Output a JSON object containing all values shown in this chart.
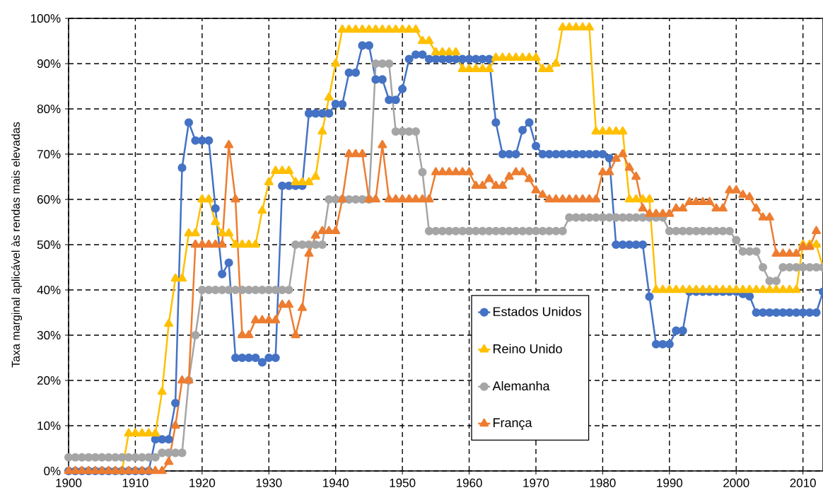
{
  "chart_data": {
    "type": "line",
    "ylabel": "Taxa marginal aplicável às rendas mais elevadas",
    "x": [
      1900,
      1901,
      1902,
      1903,
      1904,
      1905,
      1906,
      1907,
      1908,
      1909,
      1910,
      1911,
      1912,
      1913,
      1914,
      1915,
      1916,
      1917,
      1918,
      1919,
      1920,
      1921,
      1922,
      1923,
      1924,
      1925,
      1926,
      1927,
      1928,
      1929,
      1930,
      1931,
      1932,
      1933,
      1934,
      1935,
      1936,
      1937,
      1938,
      1939,
      1940,
      1941,
      1942,
      1943,
      1944,
      1945,
      1946,
      1947,
      1948,
      1949,
      1950,
      1951,
      1952,
      1953,
      1954,
      1955,
      1956,
      1957,
      1958,
      1959,
      1960,
      1961,
      1962,
      1963,
      1964,
      1965,
      1966,
      1967,
      1968,
      1969,
      1970,
      1971,
      1972,
      1973,
      1974,
      1975,
      1976,
      1977,
      1978,
      1979,
      1980,
      1981,
      1982,
      1983,
      1984,
      1985,
      1986,
      1987,
      1988,
      1989,
      1990,
      1991,
      1992,
      1993,
      1994,
      1995,
      1996,
      1997,
      1998,
      1999,
      2000,
      2001,
      2002,
      2003,
      2004,
      2005,
      2006,
      2007,
      2008,
      2009,
      2010,
      2011,
      2012,
      2013
    ],
    "series": [
      {
        "name": "Estados Unidos",
        "color": "#4472c4",
        "marker": "circle",
        "values": [
          0,
          0,
          0,
          0,
          0,
          0,
          0,
          0,
          0,
          0,
          0,
          0,
          0,
          7,
          7,
          7,
          15,
          67,
          77,
          73,
          73,
          73,
          58,
          43.5,
          46,
          25,
          25,
          25,
          25,
          24,
          25,
          25,
          63,
          63,
          63,
          63,
          79,
          79,
          79,
          79,
          81.1,
          81,
          88,
          88,
          94,
          94,
          86.5,
          86.5,
          82,
          82,
          84.4,
          91,
          92,
          92,
          91,
          91,
          91,
          91,
          91,
          91,
          91,
          91,
          91,
          91,
          77,
          70,
          70,
          70,
          75.3,
          77,
          71.8,
          70,
          70,
          70,
          70,
          70,
          70,
          70,
          70,
          70,
          70,
          69.1,
          50,
          50,
          50,
          50,
          50,
          38.5,
          28,
          28,
          28,
          31,
          31,
          39.6,
          39.6,
          39.6,
          39.6,
          39.6,
          39.6,
          39.6,
          39.6,
          39.1,
          38.6,
          35,
          35,
          35,
          35,
          35,
          35,
          35,
          35,
          35,
          35,
          39.6
        ]
      },
      {
        "name": "Reino Unido",
        "color": "#ffc000",
        "marker": "triangle",
        "values": [
          null,
          null,
          null,
          null,
          null,
          null,
          null,
          0,
          0,
          8.3,
          8.3,
          8.3,
          8.3,
          8.3,
          17.5,
          32.5,
          42.5,
          42.5,
          52.5,
          52.5,
          60,
          60,
          55,
          52.5,
          52.5,
          50,
          50,
          50,
          50,
          57.5,
          63.8,
          66.3,
          66.3,
          66.3,
          63.8,
          63.8,
          63.8,
          65,
          75,
          82.5,
          90,
          97.5,
          97.5,
          97.5,
          97.5,
          97.5,
          97.5,
          97.5,
          97.5,
          97.5,
          97.5,
          97.5,
          97.5,
          95,
          95,
          92.5,
          92.5,
          92.5,
          92.5,
          88.8,
          88.8,
          88.8,
          88.8,
          88.8,
          91.3,
          91.3,
          91.3,
          91.3,
          91.3,
          91.3,
          91.3,
          88.8,
          88.8,
          90,
          98,
          98,
          98,
          98,
          98,
          75,
          75,
          75,
          75,
          75,
          60,
          60,
          60,
          60,
          40,
          40,
          40,
          40,
          40,
          40,
          40,
          40,
          40,
          40,
          40,
          40,
          40,
          40,
          40,
          40,
          40,
          40,
          40,
          40,
          40,
          40,
          50,
          50,
          50,
          45
        ]
      },
      {
        "name": "Alemanha",
        "color": "#a5a5a5",
        "marker": "circle",
        "values": [
          3,
          3,
          3,
          3,
          3,
          3,
          3,
          3,
          3,
          3,
          3,
          3,
          3,
          3,
          4,
          4,
          4,
          4,
          20,
          30,
          40,
          40,
          40,
          40,
          40,
          40,
          40,
          40,
          40,
          40,
          40,
          40,
          40,
          40,
          50,
          50,
          50,
          50,
          50,
          60,
          60,
          60,
          60,
          60,
          60,
          60,
          90,
          90,
          90,
          75,
          75,
          75,
          75,
          66,
          53,
          53,
          53,
          53,
          53,
          53,
          53,
          53,
          53,
          53,
          53,
          53,
          53,
          53,
          53,
          53,
          53,
          53,
          53,
          53,
          53,
          56,
          56,
          56,
          56,
          56,
          56,
          56,
          56,
          56,
          56,
          56,
          56,
          56,
          56,
          56,
          53,
          53,
          53,
          53,
          53,
          53,
          53,
          53,
          53,
          53,
          51,
          48.5,
          48.5,
          48.5,
          45,
          42,
          42,
          45,
          45,
          45,
          45,
          45,
          45,
          45
        ]
      },
      {
        "name": "França",
        "color": "#ed7d31",
        "marker": "triangle",
        "values": [
          0,
          0,
          0,
          0,
          0,
          0,
          0,
          0,
          0,
          0,
          0,
          0,
          0,
          0,
          0,
          2,
          10,
          20,
          20,
          50,
          50,
          50,
          50,
          50,
          72,
          60,
          30,
          30,
          33.3,
          33.3,
          33.3,
          33.3,
          36.7,
          36.7,
          30,
          36,
          48,
          52,
          53,
          53,
          53,
          60,
          70,
          70,
          70,
          60,
          60,
          72,
          60,
          60,
          60,
          60,
          60,
          60,
          60,
          66,
          66,
          66,
          66,
          66,
          66,
          63,
          63,
          64.5,
          63,
          63,
          65,
          66,
          66,
          64.5,
          62,
          61,
          60,
          60,
          60,
          60,
          60,
          60,
          60,
          60,
          66,
          66,
          69,
          70,
          67,
          65,
          58,
          56.8,
          56.8,
          56.8,
          56.8,
          58,
          58,
          59.4,
          59.4,
          59.4,
          59.4,
          58,
          58,
          62,
          62,
          61,
          60.5,
          58,
          56,
          56,
          48,
          48,
          48,
          48,
          49.5,
          49.5,
          53,
          null
        ]
      }
    ],
    "xlim": [
      1900,
      2013
    ],
    "xticks": [
      1900,
      1910,
      1920,
      1930,
      1940,
      1950,
      1960,
      1970,
      1980,
      1990,
      2000,
      2010
    ],
    "ylim": [
      0,
      100
    ],
    "yticks": [
      {
        "value": 0,
        "label": "0%"
      },
      {
        "value": 10,
        "label": "10%"
      },
      {
        "value": 20,
        "label": "20%"
      },
      {
        "value": 30,
        "label": "30%"
      },
      {
        "value": 40,
        "label": "40%"
      },
      {
        "value": 50,
        "label": "50%"
      },
      {
        "value": 60,
        "label": "60%"
      },
      {
        "value": 70,
        "label": "70%"
      },
      {
        "value": 80,
        "label": "80%"
      },
      {
        "value": 90,
        "label": "90%"
      },
      {
        "value": 100,
        "label": "100%"
      }
    ],
    "grid": true,
    "legend": "bottom right",
    "line_style": "solid"
  }
}
